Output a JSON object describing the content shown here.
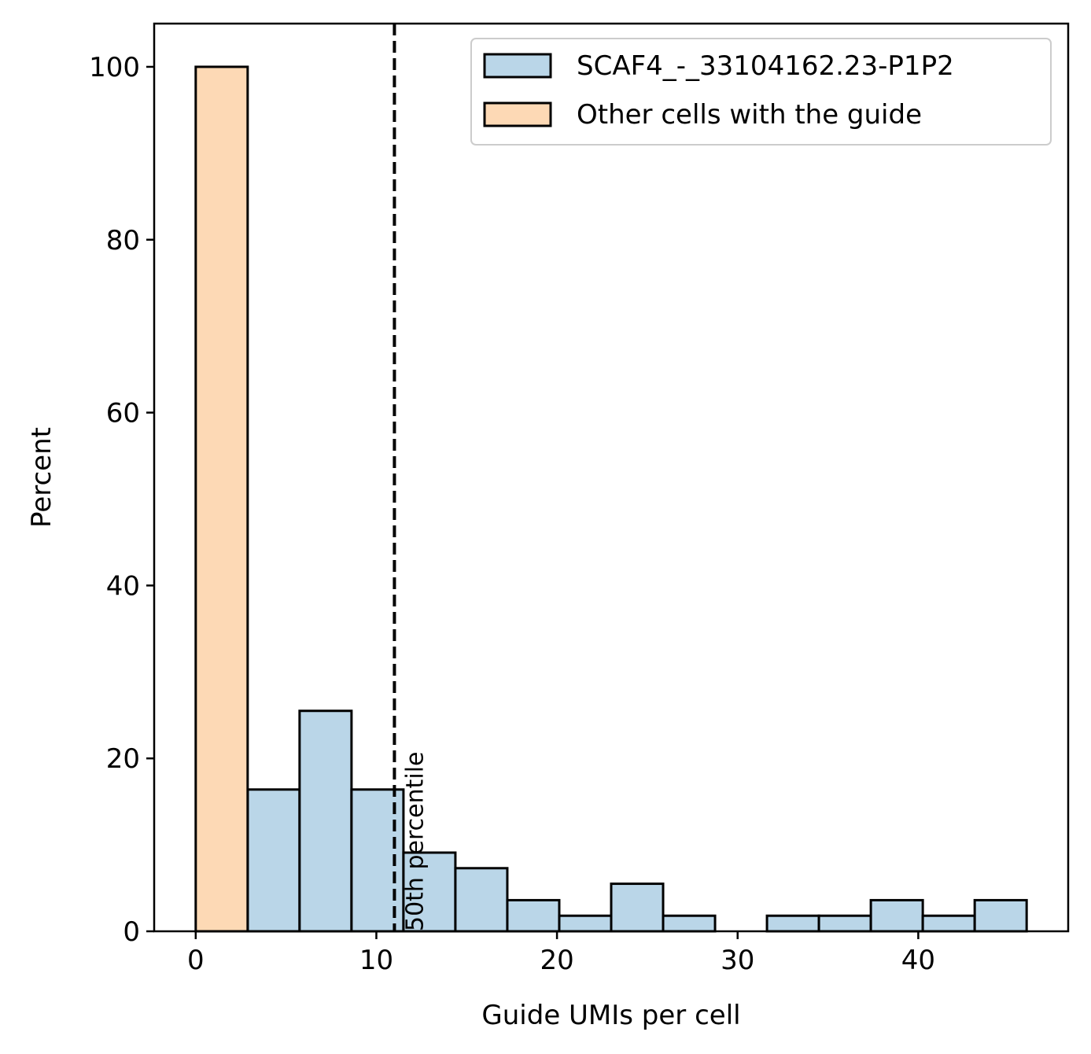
{
  "chart_data": {
    "type": "bar",
    "title": "",
    "xlabel": "Guide UMIs per cell",
    "ylabel": "Percent",
    "xlim": [
      -2.3,
      48.3
    ],
    "ylim": [
      0,
      105
    ],
    "xticks": [
      0,
      10,
      20,
      30,
      40
    ],
    "yticks": [
      0,
      20,
      40,
      60,
      80,
      100
    ],
    "grid": false,
    "legend_position": "top-right",
    "series": [
      {
        "name": "SCAF4_-_33104162.23-P1P2",
        "color": "#bad6e8",
        "bins": [
          {
            "x0": 2.875,
            "x1": 5.75,
            "value": 16.4
          },
          {
            "x0": 5.75,
            "x1": 8.625,
            "value": 25.5
          },
          {
            "x0": 8.625,
            "x1": 11.5,
            "value": 16.4
          },
          {
            "x0": 11.5,
            "x1": 14.375,
            "value": 9.1
          },
          {
            "x0": 14.375,
            "x1": 17.25,
            "value": 7.3
          },
          {
            "x0": 17.25,
            "x1": 20.125,
            "value": 3.6
          },
          {
            "x0": 20.125,
            "x1": 23.0,
            "value": 1.8
          },
          {
            "x0": 23.0,
            "x1": 25.875,
            "value": 5.5
          },
          {
            "x0": 25.875,
            "x1": 28.75,
            "value": 1.8
          },
          {
            "x0": 28.75,
            "x1": 31.625,
            "value": 0
          },
          {
            "x0": 31.625,
            "x1": 34.5,
            "value": 1.8
          },
          {
            "x0": 34.5,
            "x1": 37.375,
            "value": 1.8
          },
          {
            "x0": 37.375,
            "x1": 40.25,
            "value": 3.6
          },
          {
            "x0": 40.25,
            "x1": 43.125,
            "value": 1.8
          },
          {
            "x0": 43.125,
            "x1": 46.0,
            "value": 3.6
          }
        ]
      },
      {
        "name": "Other cells with the guide",
        "color": "#fdd9b5",
        "bins": [
          {
            "x0": 0,
            "x1": 2.875,
            "value": 100
          }
        ]
      }
    ],
    "vline": {
      "x": 11.0,
      "style": "dashed",
      "label": "50th percentile"
    }
  }
}
